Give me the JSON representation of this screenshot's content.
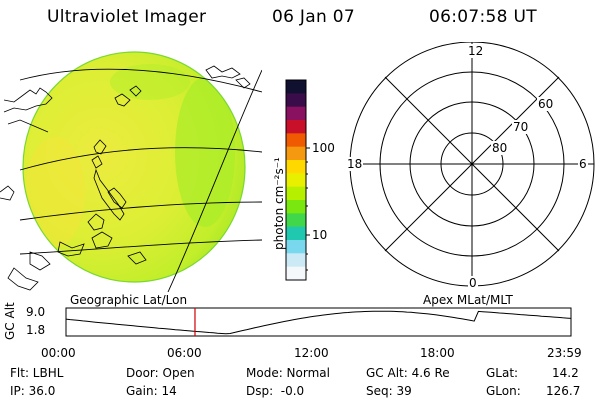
{
  "header": {
    "title": "Ultraviolet Imager",
    "date": "06 Jan 07",
    "time": "06:07:58 UT"
  },
  "colorbar": {
    "unit_label": "photon cm⁻²s⁻¹",
    "tick_labels": [
      "100",
      "10"
    ],
    "colors": [
      "#101030",
      "#3a0c4a",
      "#8a1060",
      "#c8102a",
      "#f05a00",
      "#f59a10",
      "#ffd800",
      "#e8f000",
      "#b6f000",
      "#7ae810",
      "#40d84a",
      "#20c8b0",
      "#7ad8ee",
      "#cceaf6",
      "#f4f8fa"
    ]
  },
  "polar_plot": {
    "mlt_labels": {
      "top": "12",
      "left": "18",
      "right": "6",
      "bottom": "0"
    },
    "lat_labels": [
      "60",
      "70",
      "80"
    ]
  },
  "timeline": {
    "left_caption": "Geographic Lat/Lon",
    "right_caption": "Apex MLat/MLT",
    "y_axis_label": "GC Alt",
    "y_ticks": [
      "9.0",
      "1.8"
    ],
    "x_ticks": [
      "00:00",
      "06:00",
      "12:00",
      "18:00",
      "23:59"
    ],
    "marker_time_hours": 6.13,
    "colors": {
      "marker": "#cc0000",
      "curve": "#000000"
    }
  },
  "info": {
    "row1": {
      "flt": "Flt: LBHL",
      "door": "Door: Open",
      "mode": "Mode: Normal",
      "gc_alt": "GC Alt: 4.6 Re",
      "glat_label": "GLat:",
      "glat_value": "14.2"
    },
    "row2": {
      "ip": "IP: 36.0",
      "gain": "Gain: 14",
      "dsp": "Dsp:  -0.0",
      "seq": "Seq: 39",
      "glon_label": "GLon:",
      "glon_value": "126.7"
    }
  }
}
